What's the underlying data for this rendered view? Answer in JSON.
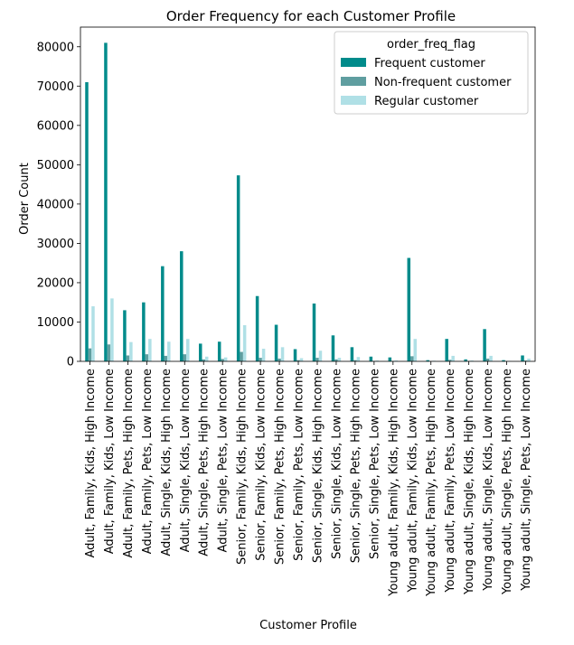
{
  "chart_data": {
    "type": "bar",
    "title": "Order Frequency for each Customer Profile",
    "xlabel": "Customer Profile",
    "ylabel": "Order Count",
    "ylim": [
      0,
      85000
    ],
    "yticks": [
      0,
      10000,
      20000,
      30000,
      40000,
      50000,
      60000,
      70000,
      80000
    ],
    "grid": false,
    "legend": {
      "title": "order_freq_flag",
      "placement": "top-right"
    },
    "categories": [
      "Adult, Family, Kids, High Income",
      "Adult, Family, Kids, Low Income",
      "Adult, Family, Pets, High Income",
      "Adult, Family, Pets, Low Income",
      "Adult, Single, Kids, High Income",
      "Adult, Single, Kids, Low Income",
      "Adult, Single, Pets, High Income",
      "Adult, Single, Pets, Low Income",
      "Senior, Family, Kids, High Income",
      "Senior, Family, Kids, Low Income",
      "Senior, Family, Pets, High Income",
      "Senior, Family, Pets, Low Income",
      "Senior, Single, Kids, High Income",
      "Senior, Single, Kids, Low Income",
      "Senior, Single, Pets, High Income",
      "Senior, Single, Pets, Low Income",
      "Young adult, Family, Kids, High Income",
      "Young adult, Family, Kids, Low Income",
      "Young adult, Family, Pets, High Income",
      "Young adult, Family, Pets, Low Income",
      "Young adult, Single, Kids, High Income",
      "Young adult, Single, Kids, Low Income",
      "Young adult, Single, Pets, High Income",
      "Young adult, Single, Pets, Low Income"
    ],
    "series": [
      {
        "name": "Frequent customer",
        "color": "#008b8b",
        "values": [
          71000,
          81000,
          13000,
          15000,
          24200,
          28000,
          4500,
          5000,
          47300,
          16600,
          9300,
          3100,
          14700,
          6600,
          3600,
          1200,
          1000,
          26300,
          300,
          5700,
          500,
          8200,
          300,
          1500
        ]
      },
      {
        "name": "Non-frequent customer",
        "color": "#5f9ea0",
        "values": [
          3300,
          4300,
          1500,
          1800,
          1400,
          1800,
          500,
          600,
          2400,
          900,
          700,
          300,
          900,
          500,
          300,
          100,
          100,
          1300,
          50,
          400,
          100,
          700,
          50,
          200
        ]
      },
      {
        "name": "Regular customer",
        "color": "#b0e0e6",
        "values": [
          14000,
          16000,
          4900,
          5700,
          5000,
          5700,
          1200,
          1000,
          9200,
          3200,
          3600,
          800,
          2700,
          900,
          1100,
          200,
          200,
          5700,
          150,
          1400,
          200,
          1400,
          100,
          700
        ]
      }
    ]
  }
}
